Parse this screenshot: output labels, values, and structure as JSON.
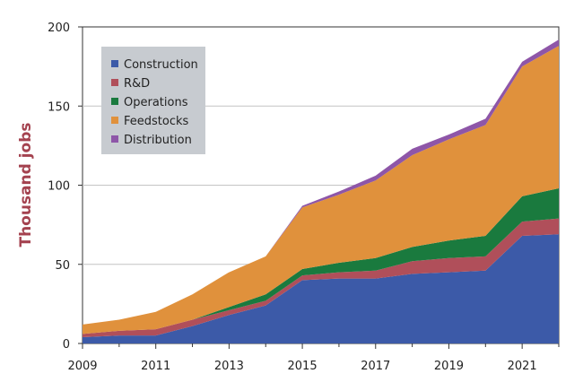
{
  "chart_data": {
    "type": "area",
    "stacked": true,
    "title": "",
    "xlabel": "",
    "ylabel": "Thousand jobs",
    "ylabel_color": "#a4424f",
    "x": [
      2009,
      2010,
      2011,
      2012,
      2013,
      2014,
      2015,
      2016,
      2017,
      2018,
      2019,
      2020,
      2021,
      2022
    ],
    "xlim": [
      2009,
      2022
    ],
    "ylim": [
      0,
      200
    ],
    "x_ticks": [
      2009,
      2011,
      2013,
      2015,
      2017,
      2019,
      2021
    ],
    "y_ticks": [
      0,
      50,
      100,
      150,
      200
    ],
    "grid": "horizontal",
    "legend_position": "top-left",
    "series": [
      {
        "name": "Construction",
        "color": "#3c5aa8",
        "values": [
          4,
          5,
          5,
          11,
          18,
          24,
          40,
          41,
          41,
          44,
          45,
          46,
          68,
          69
        ]
      },
      {
        "name": "R&D",
        "color": "#b04f5a",
        "values": [
          2,
          3,
          4,
          4,
          3,
          3,
          3,
          4,
          5,
          8,
          9,
          9,
          9,
          10
        ]
      },
      {
        "name": "Operations",
        "color": "#1a7a3e",
        "values": [
          0,
          0,
          0,
          0,
          2,
          4,
          4,
          6,
          8,
          9,
          11,
          13,
          16,
          19
        ]
      },
      {
        "name": "Feedstocks",
        "color": "#e0913c",
        "values": [
          6,
          7,
          11,
          16,
          22,
          24,
          39,
          43,
          49,
          58,
          64,
          70,
          82,
          90
        ]
      },
      {
        "name": "Distribution",
        "color": "#8e56a8",
        "values": [
          0,
          0,
          0,
          0,
          0,
          0,
          1,
          2,
          3,
          4,
          3,
          4,
          3,
          4
        ]
      }
    ]
  }
}
